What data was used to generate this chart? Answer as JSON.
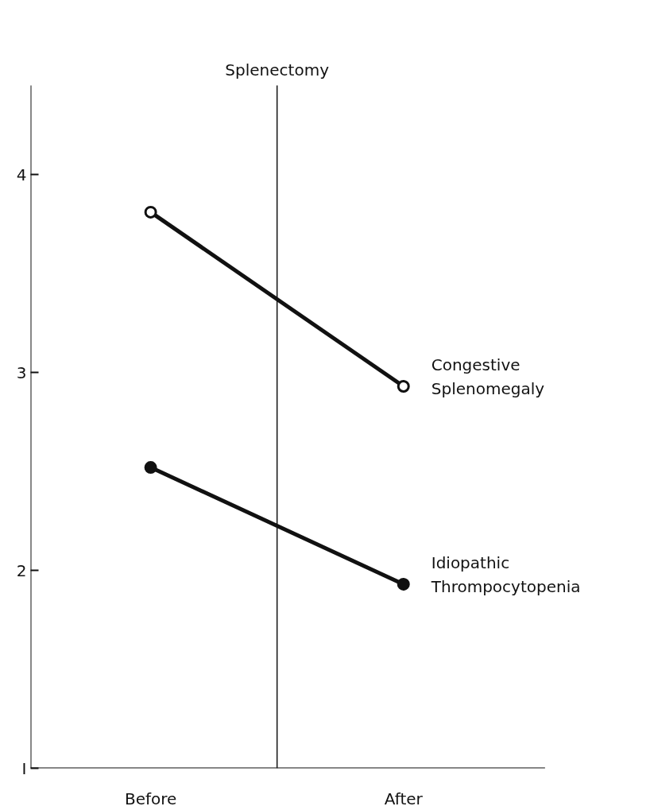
{
  "chart_data": {
    "type": "line",
    "categories": [
      "Before",
      "After"
    ],
    "ylim": [
      1,
      4.45
    ],
    "yticks": [
      {
        "value": 1,
        "label": "I"
      },
      2,
      3,
      4
    ],
    "marker": "circle",
    "grid": false,
    "annotations": [
      "Splenectomy"
    ],
    "series": [
      {
        "name": "Congestive\nSplenomegaly",
        "color": "#111111",
        "values": [
          3.81,
          2.93
        ]
      },
      {
        "name": "Idiopathic\nThrompocytopenia",
        "color": "#111111",
        "values": [
          2.52,
          1.93
        ]
      }
    ]
  }
}
